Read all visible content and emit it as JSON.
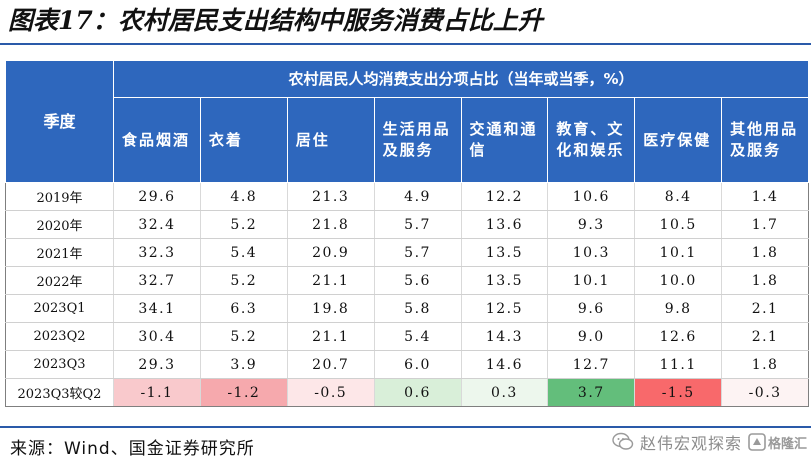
{
  "title": "图表17：农村居民支出结构中服务消费占比上升",
  "table": {
    "group_header": "农村居民人均消费支出分项占比（当年或当季，%）",
    "quarter_header": "季度",
    "columns": [
      "食品烟酒",
      "衣着",
      "居住",
      "生活用品及服务",
      "交通和通信",
      "教育、文化和娱乐",
      "医疗保健",
      "其他用品及服务"
    ],
    "rows": [
      {
        "label": "2019年",
        "values": [
          "29.6",
          "4.8",
          "21.3",
          "4.9",
          "12.2",
          "10.6",
          "8.4",
          "1.4"
        ]
      },
      {
        "label": "2020年",
        "values": [
          "32.4",
          "5.2",
          "21.8",
          "5.7",
          "13.6",
          "9.3",
          "10.5",
          "1.7"
        ]
      },
      {
        "label": "2021年",
        "values": [
          "32.3",
          "5.4",
          "20.9",
          "5.7",
          "13.5",
          "10.3",
          "10.1",
          "1.8"
        ]
      },
      {
        "label": "2022年",
        "values": [
          "32.7",
          "5.2",
          "21.1",
          "5.6",
          "13.5",
          "10.1",
          "10.0",
          "1.8"
        ]
      },
      {
        "label": "2023Q1",
        "values": [
          "34.1",
          "6.3",
          "19.8",
          "5.8",
          "12.5",
          "9.6",
          "9.8",
          "2.1"
        ]
      },
      {
        "label": "2023Q2",
        "values": [
          "30.4",
          "5.2",
          "21.1",
          "5.4",
          "14.3",
          "9.0",
          "12.6",
          "2.1"
        ]
      },
      {
        "label": "2023Q3",
        "values": [
          "29.3",
          "3.9",
          "20.7",
          "6.0",
          "14.6",
          "12.7",
          "11.1",
          "1.8"
        ]
      },
      {
        "label": "2023Q3较Q2",
        "values": [
          "-1.1",
          "-1.2",
          "-0.5",
          "0.6",
          "0.3",
          "3.7",
          "-1.5",
          "-0.3"
        ]
      }
    ],
    "diff_colors": [
      "#f9c9cc",
      "#f6a9ad",
      "#fde7e8",
      "#d9efd9",
      "#edf7ed",
      "#63be7b",
      "#f8696b",
      "#fdf3f3"
    ]
  },
  "source": "来源：Wind、国金证券研究所",
  "watermark": {
    "text": "赵伟宏观探索",
    "badge": "格隆汇",
    "icons": [
      "wechat-chat-icon",
      "badge-logo-icon"
    ]
  }
}
